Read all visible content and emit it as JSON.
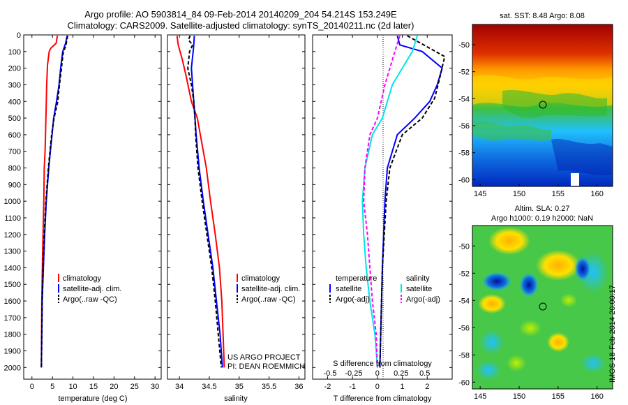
{
  "title": {
    "line1": "Argo profile: AO 5903814_84 09-Feb-2014 20140209_204 54.214S 153.249E",
    "line2": "Climatology: CARS2009. Satellite-adjusted climatology: synTS_20140211.nc (2d later)"
  },
  "colors": {
    "red": "#ff0000",
    "blue": "#0000ff",
    "black": "#000000",
    "cyan": "#00e5e5",
    "magenta": "#ff00ff"
  },
  "footer": {
    "line1": "US ARGO PROJECT",
    "line2": "PI: DEAN ROEMMICH"
  },
  "timestamp": "IMOS 18-Feb-2014 20:00:17",
  "chart_data": [
    {
      "type": "line",
      "xlabel": "temperature (deg C)",
      "xlim": [
        -2,
        31.5
      ],
      "xticks": [
        "0",
        "5",
        "10",
        "15",
        "20",
        "25",
        "30"
      ],
      "ylim": [
        0,
        2070
      ],
      "yticks": [
        "0",
        "100",
        "200",
        "300",
        "400",
        "500",
        "600",
        "700",
        "800",
        "900",
        "1000",
        "1100",
        "1200",
        "1300",
        "1400",
        "1500",
        "1600",
        "1700",
        "1800",
        "1900",
        "2000"
      ],
      "legend": [
        "climatology",
        "satellite-adj. clim.",
        "Argo(..raw -QC)"
      ],
      "series": [
        {
          "name": "climatology",
          "color": "red",
          "dash": "",
          "points": [
            [
              6.2,
              5
            ],
            [
              5.9,
              50
            ],
            [
              4.6,
              80
            ],
            [
              4.2,
              100
            ],
            [
              3.8,
              180
            ],
            [
              3.6,
              300
            ],
            [
              3.4,
              500
            ],
            [
              3.2,
              700
            ],
            [
              3.0,
              800
            ],
            [
              2.9,
              1000
            ],
            [
              2.6,
              1300
            ],
            [
              2.4,
              1600
            ],
            [
              2.3,
              2000
            ]
          ]
        },
        {
          "name": "satellite-adj. clim.",
          "color": "blue",
          "dash": "",
          "points": [
            [
              8.6,
              5
            ],
            [
              8.2,
              50
            ],
            [
              7.5,
              100
            ],
            [
              7.0,
              200
            ],
            [
              6.6,
              300
            ],
            [
              6.0,
              400
            ],
            [
              5.3,
              500
            ],
            [
              4.9,
              600
            ],
            [
              4.5,
              700
            ],
            [
              4.1,
              800
            ],
            [
              3.8,
              900
            ],
            [
              3.5,
              1000
            ],
            [
              3.1,
              1200
            ],
            [
              2.8,
              1400
            ],
            [
              2.5,
              1600
            ],
            [
              2.4,
              1800
            ],
            [
              2.3,
              2000
            ]
          ]
        },
        {
          "name": "Argo(..raw -QC)",
          "color": "black",
          "dash": "5,3",
          "points": [
            [
              8.7,
              5
            ],
            [
              8.3,
              60
            ],
            [
              7.6,
              110
            ],
            [
              7.2,
              200
            ],
            [
              6.7,
              300
            ],
            [
              6.3,
              400
            ],
            [
              5.4,
              500
            ],
            [
              4.8,
              600
            ],
            [
              4.4,
              700
            ],
            [
              4.0,
              800
            ],
            [
              3.7,
              900
            ],
            [
              3.4,
              1000
            ],
            [
              3.0,
              1200
            ],
            [
              2.7,
              1400
            ],
            [
              2.5,
              1600
            ],
            [
              2.4,
              1800
            ],
            [
              2.3,
              2000
            ]
          ]
        }
      ]
    },
    {
      "type": "line",
      "xlabel": "salinity",
      "xlim": [
        33.8,
        36.1
      ],
      "xticks": [
        "34",
        "34.5",
        "35",
        "35.5",
        "36"
      ],
      "ylim": [
        0,
        2070
      ],
      "legend": [
        "climatology",
        "satellite-adj. clim.",
        "Argo(..raw -QC)"
      ],
      "series": [
        {
          "name": "climatology",
          "color": "red",
          "dash": "",
          "points": [
            [
              33.96,
              5
            ],
            [
              33.98,
              60
            ],
            [
              34.05,
              150
            ],
            [
              34.12,
              260
            ],
            [
              34.2,
              400
            ],
            [
              34.3,
              500
            ],
            [
              34.35,
              600
            ],
            [
              34.45,
              800
            ],
            [
              34.52,
              1000
            ],
            [
              34.6,
              1200
            ],
            [
              34.67,
              1400
            ],
            [
              34.71,
              1600
            ],
            [
              34.73,
              1800
            ],
            [
              34.75,
              2000
            ]
          ]
        },
        {
          "name": "satellite-adj. clim.",
          "color": "blue",
          "dash": "",
          "points": [
            [
              34.25,
              5
            ],
            [
              34.24,
              60
            ],
            [
              34.23,
              100
            ],
            [
              34.2,
              200
            ],
            [
              34.22,
              300
            ],
            [
              34.24,
              400
            ],
            [
              34.26,
              500
            ],
            [
              34.28,
              600
            ],
            [
              34.33,
              800
            ],
            [
              34.4,
              1000
            ],
            [
              34.48,
              1200
            ],
            [
              34.56,
              1400
            ],
            [
              34.62,
              1600
            ],
            [
              34.68,
              1800
            ],
            [
              34.72,
              2000
            ]
          ]
        },
        {
          "name": "Argo(..raw -QC)",
          "color": "black",
          "dash": "5,3",
          "points": [
            [
              34.18,
              5
            ],
            [
              34.15,
              30
            ],
            [
              34.22,
              60
            ],
            [
              34.17,
              100
            ],
            [
              34.14,
              200
            ],
            [
              34.2,
              300
            ],
            [
              34.24,
              400
            ],
            [
              34.26,
              500
            ],
            [
              34.27,
              600
            ],
            [
              34.31,
              800
            ],
            [
              34.38,
              1000
            ],
            [
              34.46,
              1200
            ],
            [
              34.54,
              1400
            ],
            [
              34.6,
              1600
            ],
            [
              34.65,
              1800
            ],
            [
              34.7,
              2000
            ]
          ]
        }
      ]
    },
    {
      "type": "line",
      "xlabel": "T difference from climatology",
      "xlim": [
        -2.6,
        3
      ],
      "xticks": [
        "-2",
        "-1",
        "0",
        "1",
        "2"
      ],
      "sticks": [
        "-0.5",
        "-0.25",
        "0",
        "0.25",
        "0.5"
      ],
      "sticks_pos": [
        -1.9,
        -0.95,
        0,
        0.95,
        1.9
      ],
      "slabel": "S difference from climatology",
      "ylim": [
        0,
        2070
      ],
      "legend_temperature": {
        "heading": "temperature",
        "items": [
          "satellite",
          "Argo(-adj)"
        ]
      },
      "legend_salinity": {
        "heading": "salinity",
        "items": [
          "satellite",
          "Argo(-adj)"
        ]
      },
      "series": [
        {
          "name": "temperature satellite",
          "color": "blue",
          "dash": "",
          "points": [
            [
              0.8,
              5
            ],
            [
              0.9,
              60
            ],
            [
              1.8,
              100
            ],
            [
              2.6,
              200
            ],
            [
              2.4,
              300
            ],
            [
              2.1,
              400
            ],
            [
              1.5,
              500
            ],
            [
              0.8,
              600
            ],
            [
              0.4,
              800
            ],
            [
              0.3,
              1000
            ],
            [
              0.2,
              1400
            ],
            [
              0.15,
              1700
            ],
            [
              0.1,
              2000
            ]
          ]
        },
        {
          "name": "temperature Argo(-adj)",
          "color": "black",
          "dash": "5,3",
          "points": [
            [
              1.2,
              5
            ],
            [
              2.1,
              80
            ],
            [
              2.7,
              130
            ],
            [
              2.5,
              260
            ],
            [
              2.3,
              380
            ],
            [
              1.8,
              500
            ],
            [
              1.0,
              600
            ],
            [
              0.5,
              800
            ],
            [
              0.35,
              1000
            ],
            [
              0.2,
              1400
            ],
            [
              0.15,
              1700
            ],
            [
              0.1,
              2000
            ]
          ]
        },
        {
          "name": "salinity satellite",
          "color": "cyan",
          "dash": "",
          "points": [
            [
              1.6,
              5
            ],
            [
              1.4,
              100
            ],
            [
              0.6,
              300
            ],
            [
              0.2,
              500
            ],
            [
              -0.2,
              600
            ],
            [
              -0.5,
              800
            ],
            [
              -0.6,
              1000
            ],
            [
              -0.55,
              1200
            ],
            [
              -0.45,
              1400
            ],
            [
              -0.3,
              1600
            ],
            [
              -0.1,
              1800
            ],
            [
              0.0,
              2000
            ]
          ]
        },
        {
          "name": "salinity Argo(-adj)",
          "color": "magenta",
          "dash": "5,3",
          "points": [
            [
              0.9,
              5
            ],
            [
              0.7,
              100
            ],
            [
              0.3,
              300
            ],
            [
              0.0,
              500
            ],
            [
              -0.3,
              600
            ],
            [
              -0.5,
              800
            ],
            [
              -0.55,
              1000
            ],
            [
              -0.4,
              1200
            ],
            [
              -0.3,
              1400
            ],
            [
              -0.2,
              1600
            ],
            [
              -0.05,
              1800
            ],
            [
              0.0,
              2000
            ]
          ]
        }
      ]
    },
    {
      "type": "heatmap",
      "title": "sat. SST: 8.48 Argo: 8.08",
      "xticks": [
        "145",
        "150",
        "155",
        "160"
      ],
      "yticks": [
        "-50",
        "-52",
        "-54",
        "-56",
        "-58",
        "-60"
      ],
      "xlim": [
        144,
        162
      ],
      "ylim": [
        -60.5,
        -48.5
      ],
      "marker": [
        153.2,
        -54.2
      ]
    },
    {
      "type": "heatmap",
      "title": "Altim. SLA: 0.27",
      "subtitle": "Argo h1000: 0.19 h2000: NaN",
      "xticks": [
        "145",
        "150",
        "155",
        "160"
      ],
      "yticks": [
        "-50",
        "-52",
        "-54",
        "-56",
        "-58",
        "-60"
      ],
      "xlim": [
        144,
        162
      ],
      "ylim": [
        -60.5,
        -48.5
      ],
      "marker": [
        153.2,
        -54.2
      ]
    }
  ]
}
